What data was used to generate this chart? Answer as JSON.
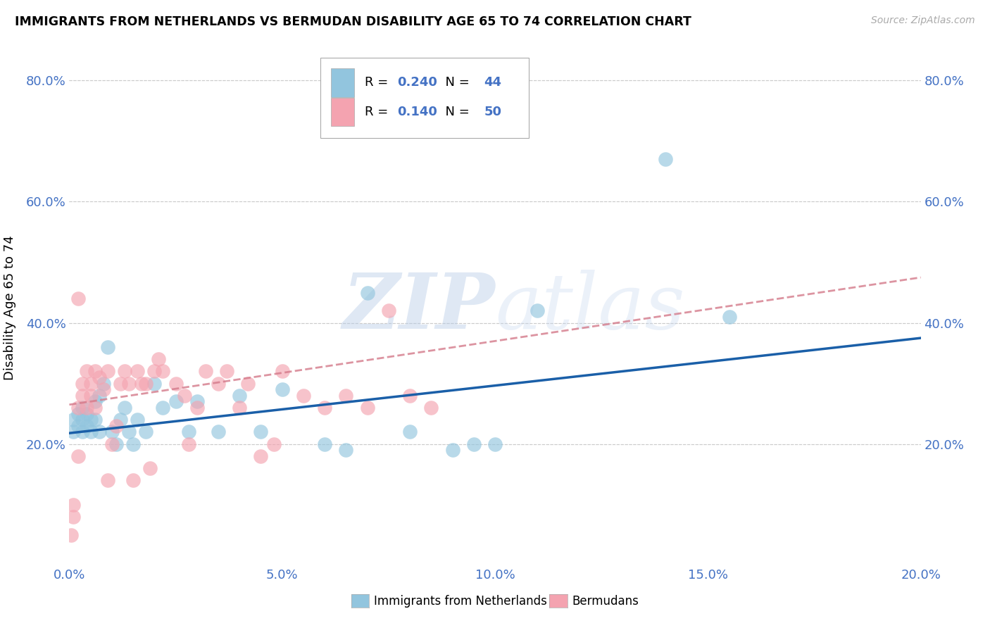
{
  "title": "IMMIGRANTS FROM NETHERLANDS VS BERMUDAN DISABILITY AGE 65 TO 74 CORRELATION CHART",
  "source": "Source: ZipAtlas.com",
  "ylabel": "Disability Age 65 to 74",
  "legend_label1": "Immigrants from Netherlands",
  "legend_label2": "Bermudans",
  "R1": 0.24,
  "N1": 44,
  "R2": 0.14,
  "N2": 50,
  "color1": "#92c5de",
  "color2": "#f4a3b0",
  "trend_color1": "#1a5fa8",
  "trend_color2": "#d47a8a",
  "xlim": [
    0.0,
    0.2
  ],
  "ylim": [
    0.0,
    0.85
  ],
  "xticks": [
    0.0,
    0.05,
    0.1,
    0.15,
    0.2
  ],
  "yticks": [
    0.2,
    0.4,
    0.6,
    0.8
  ],
  "watermark": "ZIPatlas",
  "blue_x": [
    0.001,
    0.001,
    0.002,
    0.002,
    0.003,
    0.003,
    0.003,
    0.004,
    0.004,
    0.005,
    0.005,
    0.006,
    0.006,
    0.007,
    0.007,
    0.008,
    0.009,
    0.01,
    0.011,
    0.012,
    0.013,
    0.014,
    0.015,
    0.016,
    0.018,
    0.02,
    0.022,
    0.025,
    0.028,
    0.03,
    0.035,
    0.04,
    0.045,
    0.05,
    0.06,
    0.065,
    0.07,
    0.08,
    0.09,
    0.095,
    0.1,
    0.11,
    0.14,
    0.155
  ],
  "blue_y": [
    0.22,
    0.24,
    0.23,
    0.25,
    0.24,
    0.22,
    0.26,
    0.23,
    0.25,
    0.24,
    0.22,
    0.27,
    0.24,
    0.28,
    0.22,
    0.3,
    0.36,
    0.22,
    0.2,
    0.24,
    0.26,
    0.22,
    0.2,
    0.24,
    0.22,
    0.3,
    0.26,
    0.27,
    0.22,
    0.27,
    0.22,
    0.28,
    0.22,
    0.29,
    0.2,
    0.19,
    0.45,
    0.22,
    0.19,
    0.2,
    0.2,
    0.42,
    0.67,
    0.41
  ],
  "pink_x": [
    0.0005,
    0.001,
    0.001,
    0.002,
    0.002,
    0.002,
    0.003,
    0.003,
    0.004,
    0.004,
    0.005,
    0.005,
    0.006,
    0.006,
    0.007,
    0.008,
    0.009,
    0.009,
    0.01,
    0.011,
    0.012,
    0.013,
    0.014,
    0.015,
    0.016,
    0.017,
    0.018,
    0.019,
    0.02,
    0.021,
    0.022,
    0.025,
    0.027,
    0.028,
    0.03,
    0.032,
    0.035,
    0.037,
    0.04,
    0.042,
    0.045,
    0.048,
    0.05,
    0.055,
    0.06,
    0.065,
    0.07,
    0.075,
    0.08,
    0.085
  ],
  "pink_y": [
    0.05,
    0.08,
    0.1,
    0.26,
    0.18,
    0.44,
    0.3,
    0.28,
    0.32,
    0.26,
    0.3,
    0.28,
    0.32,
    0.26,
    0.31,
    0.29,
    0.14,
    0.32,
    0.2,
    0.23,
    0.3,
    0.32,
    0.3,
    0.14,
    0.32,
    0.3,
    0.3,
    0.16,
    0.32,
    0.34,
    0.32,
    0.3,
    0.28,
    0.2,
    0.26,
    0.32,
    0.3,
    0.32,
    0.26,
    0.3,
    0.18,
    0.2,
    0.32,
    0.28,
    0.26,
    0.28,
    0.26,
    0.42,
    0.28,
    0.26
  ],
  "blue_trend_x0": 0.0,
  "blue_trend_y0": 0.218,
  "blue_trend_x1": 0.2,
  "blue_trend_y1": 0.375,
  "pink_trend_x0": 0.0,
  "pink_trend_y0": 0.265,
  "pink_trend_x1": 0.2,
  "pink_trend_y1": 0.475
}
